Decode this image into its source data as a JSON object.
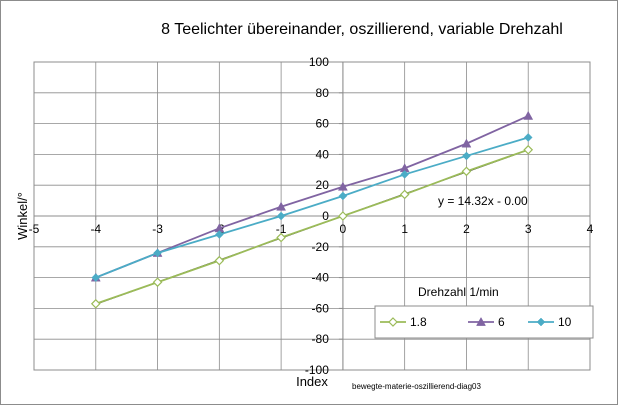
{
  "chart_data": {
    "type": "line",
    "title": "8 Teelichter übereinander, oszillierend, variable Drehzahl",
    "ylabel": "Winkel/°",
    "xlabel": "Index",
    "xlim": [
      -5,
      4
    ],
    "ylim": [
      -100,
      100
    ],
    "x_ticks": [
      -5,
      -4,
      -3,
      -2,
      -1,
      0,
      1,
      2,
      3,
      4
    ],
    "y_ticks": [
      -100,
      -80,
      -60,
      -40,
      -20,
      0,
      20,
      40,
      60,
      80,
      100
    ],
    "x_tick_labels": [
      "-5",
      "-4",
      "-3",
      "-2",
      "-1",
      "0",
      "1",
      "2",
      "3",
      "4"
    ],
    "y_tick_labels": [
      "-100",
      "-80",
      "-60",
      "-40",
      "-20",
      "0",
      "20",
      "40",
      "60",
      "80",
      "100"
    ],
    "grid": true,
    "legend_title": "Drehzahl  1/min",
    "legend_placement": "bottom-right",
    "series": [
      {
        "name": "1.8",
        "color": "#9bbb59",
        "marker": "diamond-open",
        "x": [
          -4,
          -3,
          -2,
          -1,
          0,
          1,
          2,
          3
        ],
        "y": [
          -57,
          -43,
          -29,
          -14,
          0,
          14,
          29,
          43
        ]
      },
      {
        "name": "6",
        "color": "#8064a2",
        "marker": "triangle",
        "x": [
          -4,
          -3,
          -2,
          -1,
          0,
          1,
          2,
          3
        ],
        "y": [
          -40,
          -24,
          -8,
          6,
          19,
          31,
          47,
          65
        ]
      },
      {
        "name": "10",
        "color": "#4bacc6",
        "marker": "diamond",
        "x": [
          -4,
          -3,
          -2,
          -1,
          0,
          1,
          2,
          3
        ],
        "y": [
          -40,
          -24,
          -12,
          0,
          13,
          27,
          39,
          51
        ]
      }
    ],
    "trendline": {
      "color": "#1a1a1a",
      "x": [
        -4,
        3
      ],
      "y": [
        -57.28,
        42.96
      ],
      "equation": "y = 14.32x - 0.00"
    },
    "annotations": [
      "bewegte-materie-oszillierend-diag03"
    ]
  }
}
